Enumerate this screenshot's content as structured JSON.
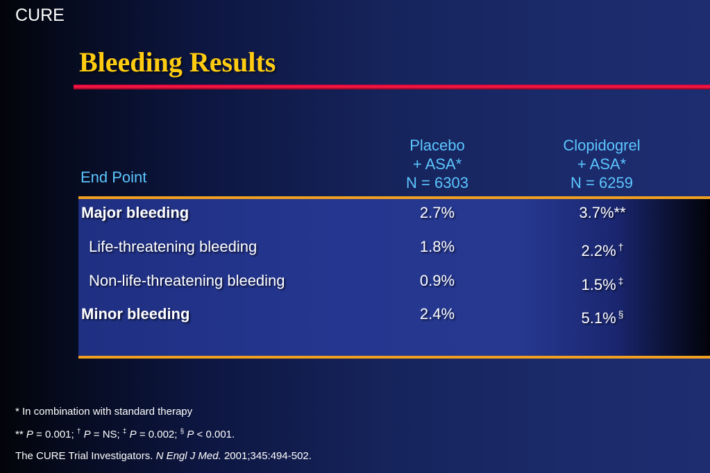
{
  "header": {
    "brand": "CURE",
    "title": "Bleeding Results"
  },
  "table": {
    "col_endpoint": "End Point",
    "col_placebo": [
      "Placebo",
      "+ ASA*",
      "N = 6303"
    ],
    "col_clopidogrel": [
      "Clopidogrel",
      "+ ASA*",
      "N = 6259"
    ],
    "rows": [
      {
        "label": "Major bleeding",
        "placebo": "2.7%",
        "clopidogrel": "3.7%**",
        "marker": ""
      },
      {
        "label": "Life-threatening bleeding",
        "placebo": "1.8%",
        "clopidogrel": "2.2%",
        "marker": "†"
      },
      {
        "label": "Non-life-threatening bleeding",
        "placebo": "0.9%",
        "clopidogrel": "1.5%",
        "marker": "‡"
      },
      {
        "label": "Minor bleeding",
        "placebo": "2.4%",
        "clopidogrel": "5.1%",
        "marker": "§"
      }
    ]
  },
  "footnotes": {
    "line1": "* In combination with standard therapy",
    "line2": {
      "prefix": "**",
      "p": "P",
      "eq1": "= 0.001;",
      "m1": "†",
      "eq2": "= NS;",
      "m2": "‡",
      "eq3": "= 0.002;",
      "m3": "§",
      "eq4": "< 0.001."
    },
    "line3": {
      "pre": "The CURE Trial Investigators.",
      "journal": "N Engl J Med.",
      "cite": "2001;345:494-502."
    }
  }
}
